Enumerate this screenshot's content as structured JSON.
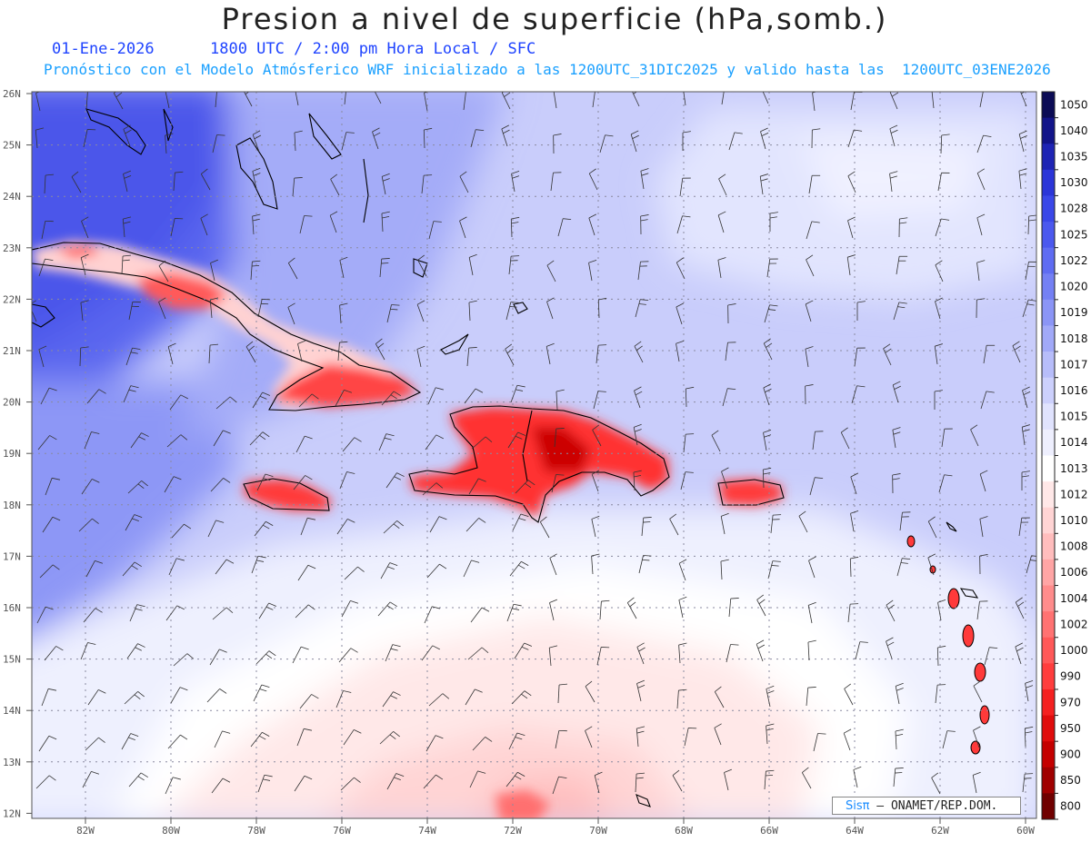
{
  "title": "Presion a nivel de superficie (hPa,somb.)",
  "subtitle_time": "01-Ene-2026      1800 UTC / 2:00 pm Hora Local / SFC",
  "subtitle_model": "Pronóstico con el Modelo Atmósferico WRF inicializado a las 1200UTC_31DIC2025 y valido hasta las  1200UTC_03ENE2026",
  "lat_labels": [
    "26N",
    "25N",
    "24N",
    "23N",
    "22N",
    "21N",
    "20N",
    "19N",
    "18N",
    "17N",
    "16N",
    "15N",
    "14N",
    "13N",
    "12N"
  ],
  "lon_labels": [
    "82W",
    "80W",
    "78W",
    "76W",
    "74W",
    "72W",
    "70W",
    "68W",
    "66W",
    "64W",
    "62W",
    "60W"
  ],
  "colorbar": {
    "levels": [
      "1050",
      "1040",
      "1035",
      "1030",
      "1028",
      "1025",
      "1022",
      "1020",
      "1019",
      "1018",
      "1017",
      "1016",
      "1015",
      "1014",
      "1013",
      "1012",
      "1010",
      "1008",
      "1006",
      "1004",
      "1002",
      "1000",
      "990",
      "970",
      "950",
      "900",
      "850",
      "800"
    ],
    "colors": [
      "#0b0b55",
      "#121489",
      "#1e24b4",
      "#2b35d8",
      "#3a47e8",
      "#4b58ee",
      "#5f6cf2",
      "#7480f4",
      "#8b95f6",
      "#a1a9f8",
      "#b7bdfa",
      "#ccd0fc",
      "#e0e3fe",
      "#eeeffe",
      "#ffffff",
      "#ffe8e8",
      "#ffd4d4",
      "#ffbdbd",
      "#ffa5a5",
      "#ff8c8c",
      "#ff7272",
      "#ff5858",
      "#ff3d3d",
      "#f42020",
      "#e00c0c",
      "#c40000",
      "#a00000",
      "#700000"
    ]
  },
  "credit_sis": "Sisπ",
  "credit_org": " – ONAMET/REP.DOM."
}
